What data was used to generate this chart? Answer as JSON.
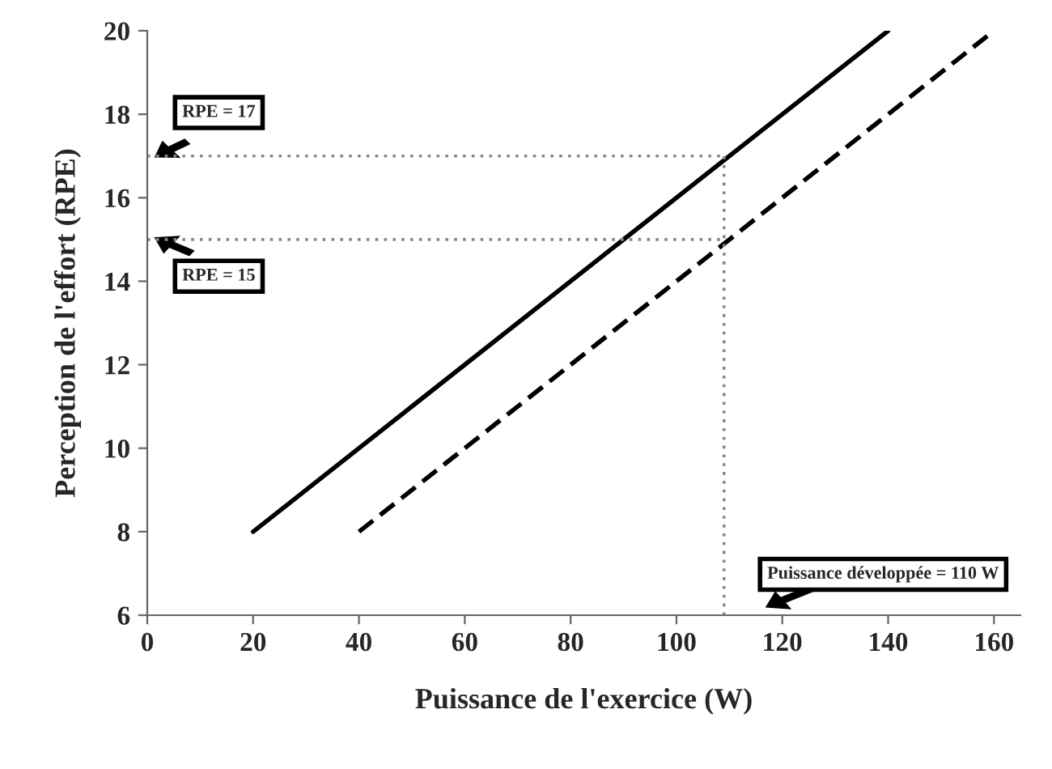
{
  "chart_data": {
    "type": "line",
    "xlabel": "Puissance de l'exercice (W)",
    "ylabel": "Perception de l'effort (RPE)",
    "xlim": [
      0,
      165
    ],
    "ylim": [
      6,
      20
    ],
    "xticks": [
      0,
      20,
      40,
      60,
      80,
      100,
      120,
      140,
      160
    ],
    "yticks": [
      6,
      8,
      10,
      12,
      14,
      16,
      18,
      20
    ],
    "grid": false,
    "legend": false,
    "marker": "none",
    "series": [
      {
        "color": "#000000",
        "line_style": "solid",
        "x": [
          20,
          140
        ],
        "values": [
          8,
          20
        ]
      },
      {
        "color": "#000000",
        "line_style": "dashed",
        "x": [
          40,
          160
        ],
        "values": [
          8,
          20
        ]
      },
      {
        "color": "#888888",
        "line_style": "dotted",
        "x": [
          0,
          109
        ],
        "values": [
          17,
          17
        ]
      },
      {
        "color": "#888888",
        "line_style": "dotted",
        "x": [
          0,
          109
        ],
        "values": [
          15,
          15
        ]
      },
      {
        "color": "#888888",
        "line_style": "dotted",
        "x": [
          109,
          109
        ],
        "values": [
          6,
          17
        ]
      }
    ],
    "annotations": [
      "RPE = 17",
      "RPE = 15",
      "Puissance développée = 110 W"
    ]
  }
}
